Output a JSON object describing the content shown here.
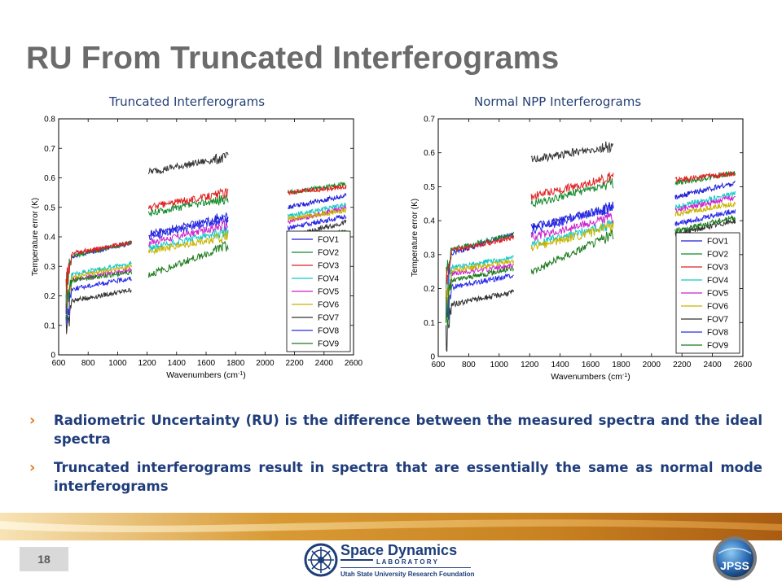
{
  "slide": {
    "title": "RU From Truncated Interferograms",
    "page_number": "18",
    "bullets": [
      "Radiometric Uncertainty (RU) is the difference between the measured spectra and the ideal spectra",
      "Truncated interferograms result in spectra that are essentially the same as normal mode interferograms"
    ],
    "logo": {
      "line1": "Space Dynamics",
      "line2": "L A B O R A T O R Y",
      "line3": "Utah State University Research Foundation"
    },
    "badge": {
      "text": "JPSS"
    },
    "colors": {
      "title": "#6b6b6b",
      "bullet_text": "#1f3d7a",
      "bullet_marker": "#e07b1b",
      "band": "#d4952c"
    }
  },
  "chart_data": [
    {
      "type": "line",
      "title": "Truncated Interferograms",
      "xlabel": "Wavenumbers (cm-1)",
      "ylabel": "Temperature error (K)",
      "xlim": [
        600,
        2600
      ],
      "ylim": [
        0,
        0.8
      ],
      "xticks": [
        600,
        800,
        1000,
        1200,
        1400,
        1600,
        1800,
        2000,
        2200,
        2400,
        2600
      ],
      "yticks": [
        0,
        0.1,
        0.2,
        0.3,
        0.4,
        0.5,
        0.6,
        0.7,
        0.8
      ],
      "legend_position": "lower-right",
      "bands": [
        [
          650,
          1095
        ],
        [
          1210,
          1750
        ],
        [
          2155,
          2550
        ]
      ],
      "series": [
        {
          "name": "FOV1",
          "color": "#1f1fd6",
          "segments": [
            [
              [
                650,
                0.33
              ],
              [
                1095,
                0.38
              ]
            ],
            [
              [
                1210,
                0.41
              ],
              [
                1750,
                0.47
              ]
            ],
            [
              [
                2155,
                0.5
              ],
              [
                2550,
                0.54
              ]
            ]
          ]
        },
        {
          "name": "FOV2",
          "color": "#0f8a2a",
          "segments": [
            [
              [
                650,
                0.33
              ],
              [
                1095,
                0.38
              ]
            ],
            [
              [
                1210,
                0.48
              ],
              [
                1750,
                0.53
              ]
            ],
            [
              [
                2155,
                0.55
              ],
              [
                2550,
                0.58
              ]
            ]
          ]
        },
        {
          "name": "FOV3",
          "color": "#e02020",
          "segments": [
            [
              [
                650,
                0.34
              ],
              [
                1095,
                0.38
              ]
            ],
            [
              [
                1210,
                0.5
              ],
              [
                1750,
                0.55
              ]
            ],
            [
              [
                2155,
                0.55
              ],
              [
                2550,
                0.57
              ]
            ]
          ]
        },
        {
          "name": "FOV4",
          "color": "#14c7c7",
          "segments": [
            [
              [
                650,
                0.27
              ],
              [
                1095,
                0.31
              ]
            ],
            [
              [
                1210,
                0.36
              ],
              [
                1750,
                0.42
              ]
            ],
            [
              [
                2155,
                0.47
              ],
              [
                2550,
                0.51
              ]
            ]
          ]
        },
        {
          "name": "FOV5",
          "color": "#cc22cc",
          "segments": [
            [
              [
                650,
                0.25
              ],
              [
                1095,
                0.29
              ]
            ],
            [
              [
                1210,
                0.38
              ],
              [
                1750,
                0.44
              ]
            ],
            [
              [
                2155,
                0.45
              ],
              [
                2550,
                0.5
              ]
            ]
          ]
        },
        {
          "name": "FOV6",
          "color": "#c8b400",
          "segments": [
            [
              [
                650,
                0.26
              ],
              [
                1095,
                0.3
              ]
            ],
            [
              [
                1210,
                0.35
              ],
              [
                1750,
                0.4
              ]
            ],
            [
              [
                2155,
                0.46
              ],
              [
                2550,
                0.49
              ]
            ]
          ]
        },
        {
          "name": "FOV7",
          "color": "#333333",
          "segments": [
            [
              [
                650,
                0.18
              ],
              [
                1095,
                0.22
              ]
            ],
            [
              [
                1210,
                0.62
              ],
              [
                1750,
                0.67
              ]
            ],
            [
              [
                2155,
                0.4
              ],
              [
                2550,
                0.45
              ]
            ]
          ]
        },
        {
          "name": "FOV8",
          "color": "#2a2ae8",
          "segments": [
            [
              [
                650,
                0.22
              ],
              [
                1095,
                0.26
              ]
            ],
            [
              [
                1210,
                0.4
              ],
              [
                1750,
                0.46
              ]
            ],
            [
              [
                2155,
                0.43
              ],
              [
                2550,
                0.47
              ]
            ]
          ]
        },
        {
          "name": "FOV9",
          "color": "#1b7a1b",
          "segments": [
            [
              [
                650,
                0.25
              ],
              [
                1095,
                0.28
              ]
            ],
            [
              [
                1210,
                0.27
              ],
              [
                1750,
                0.37
              ]
            ],
            [
              [
                2155,
                0.38
              ],
              [
                2550,
                0.42
              ]
            ]
          ]
        }
      ]
    },
    {
      "type": "line",
      "title": "Normal NPP Interferograms",
      "xlabel": "Wavenumbers (cm-1)",
      "ylabel": "Temperature error (K)",
      "xlim": [
        600,
        2600
      ],
      "ylim": [
        0,
        0.7
      ],
      "xticks": [
        600,
        800,
        1000,
        1200,
        1400,
        1600,
        1800,
        2000,
        2200,
        2400,
        2600
      ],
      "yticks": [
        0,
        0.1,
        0.2,
        0.3,
        0.4,
        0.5,
        0.6,
        0.7
      ],
      "legend_position": "lower-right",
      "bands": [
        [
          650,
          1095
        ],
        [
          1210,
          1750
        ],
        [
          2155,
          2550
        ]
      ],
      "series": [
        {
          "name": "FOV1",
          "color": "#1f1fd6",
          "segments": [
            [
              [
                650,
                0.3
              ],
              [
                1095,
                0.36
              ]
            ],
            [
              [
                1210,
                0.38
              ],
              [
                1750,
                0.44
              ]
            ],
            [
              [
                2155,
                0.47
              ],
              [
                2550,
                0.51
              ]
            ]
          ]
        },
        {
          "name": "FOV2",
          "color": "#0f8a2a",
          "segments": [
            [
              [
                650,
                0.31
              ],
              [
                1095,
                0.36
              ]
            ],
            [
              [
                1210,
                0.45
              ],
              [
                1750,
                0.51
              ]
            ],
            [
              [
                2155,
                0.51
              ],
              [
                2550,
                0.54
              ]
            ]
          ]
        },
        {
          "name": "FOV3",
          "color": "#e02020",
          "segments": [
            [
              [
                650,
                0.31
              ],
              [
                1095,
                0.35
              ]
            ],
            [
              [
                1210,
                0.47
              ],
              [
                1750,
                0.53
              ]
            ],
            [
              [
                2155,
                0.52
              ],
              [
                2550,
                0.54
              ]
            ]
          ]
        },
        {
          "name": "FOV4",
          "color": "#14c7c7",
          "segments": [
            [
              [
                650,
                0.26
              ],
              [
                1095,
                0.29
              ]
            ],
            [
              [
                1210,
                0.33
              ],
              [
                1750,
                0.39
              ]
            ],
            [
              [
                2155,
                0.44
              ],
              [
                2550,
                0.48
              ]
            ]
          ]
        },
        {
          "name": "FOV5",
          "color": "#cc22cc",
          "segments": [
            [
              [
                650,
                0.24
              ],
              [
                1095,
                0.27
              ]
            ],
            [
              [
                1210,
                0.35
              ],
              [
                1750,
                0.41
              ]
            ],
            [
              [
                2155,
                0.43
              ],
              [
                2550,
                0.47
              ]
            ]
          ]
        },
        {
          "name": "FOV6",
          "color": "#c8b400",
          "segments": [
            [
              [
                650,
                0.25
              ],
              [
                1095,
                0.28
              ]
            ],
            [
              [
                1210,
                0.32
              ],
              [
                1750,
                0.38
              ]
            ],
            [
              [
                2155,
                0.42
              ],
              [
                2550,
                0.45
              ]
            ]
          ]
        },
        {
          "name": "FOV7",
          "color": "#333333",
          "segments": [
            [
              [
                650,
                0.15
              ],
              [
                1095,
                0.19
              ]
            ],
            [
              [
                1210,
                0.58
              ],
              [
                1750,
                0.62
              ]
            ],
            [
              [
                2155,
                0.36
              ],
              [
                2550,
                0.4
              ]
            ]
          ]
        },
        {
          "name": "FOV8",
          "color": "#2a2ae8",
          "segments": [
            [
              [
                650,
                0.2
              ],
              [
                1095,
                0.24
              ]
            ],
            [
              [
                1210,
                0.37
              ],
              [
                1750,
                0.44
              ]
            ],
            [
              [
                2155,
                0.39
              ],
              [
                2550,
                0.43
              ]
            ]
          ]
        },
        {
          "name": "FOV9",
          "color": "#1b7a1b",
          "segments": [
            [
              [
                650,
                0.22
              ],
              [
                1095,
                0.26
              ]
            ],
            [
              [
                1210,
                0.25
              ],
              [
                1750,
                0.36
              ]
            ],
            [
              [
                2155,
                0.37
              ],
              [
                2550,
                0.41
              ]
            ]
          ]
        }
      ]
    }
  ]
}
